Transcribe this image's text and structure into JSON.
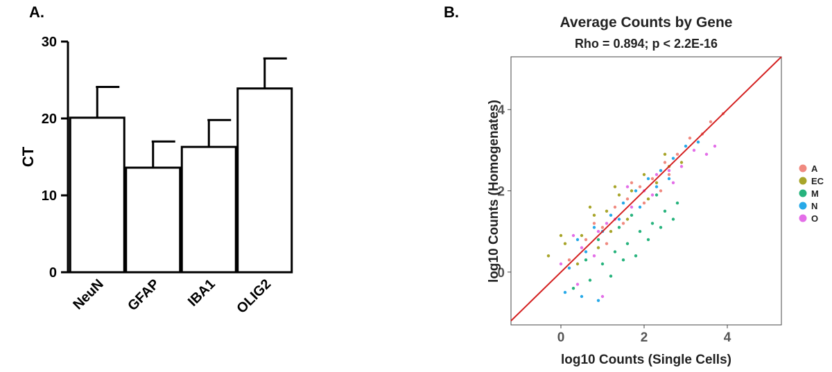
{
  "chart_data": [
    {
      "panel_label": "A.",
      "type": "bar",
      "title": "",
      "xlabel": "",
      "ylabel": "CT",
      "ylim": [
        0,
        30
      ],
      "yticks": [
        0,
        10,
        20,
        30
      ],
      "categories": [
        "NeuN",
        "GFAP",
        "IBA1",
        "OLIG2"
      ],
      "values": [
        20.1,
        13.6,
        16.3,
        23.9
      ],
      "errors": [
        4.0,
        3.4,
        3.5,
        3.9
      ],
      "grid": false,
      "colors": {
        "bar_fill": "#ffffff",
        "bar_stroke": "#000000"
      }
    },
    {
      "panel_label": "B.",
      "type": "scatter",
      "title": "Average Counts by Gene",
      "subtitle": "Rho = 0.894; p < 2.2E-16",
      "xlabel": "log10 Counts (Single Cells)",
      "ylabel": "log10 Counts (Homogenates)",
      "xlim": [
        -1.2,
        5.3
      ],
      "ylim": [
        -1.3,
        5.3
      ],
      "xticks": [
        0,
        2,
        4
      ],
      "yticks": [
        0,
        2,
        4
      ],
      "grid": false,
      "legend_position": "right",
      "fit_line": {
        "slope": 1.0,
        "intercept": 0.0,
        "color": "#d42020"
      },
      "series": [
        {
          "name": "A",
          "color": "#f08a80",
          "points": [
            [
              0.2,
              0.3
            ],
            [
              0.6,
              0.8
            ],
            [
              1.0,
              1.1
            ],
            [
              1.3,
              1.6
            ],
            [
              1.6,
              1.8
            ],
            [
              1.9,
              2.1
            ],
            [
              2.2,
              2.3
            ],
            [
              2.5,
              2.7
            ],
            [
              2.8,
              2.9
            ],
            [
              3.1,
              3.3
            ],
            [
              3.4,
              3.4
            ],
            [
              3.6,
              3.7
            ],
            [
              1.1,
              0.7
            ],
            [
              1.5,
              1.2
            ],
            [
              2.0,
              1.7
            ],
            [
              2.4,
              2.0
            ],
            [
              0.8,
              1.2
            ],
            [
              1.7,
              2.2
            ],
            [
              2.6,
              2.4
            ],
            [
              3.9,
              3.9
            ]
          ]
        },
        {
          "name": "EC",
          "color": "#a8a52a",
          "points": [
            [
              -0.3,
              0.4
            ],
            [
              0.1,
              0.7
            ],
            [
              0.5,
              0.9
            ],
            [
              0.8,
              1.4
            ],
            [
              1.1,
              1.5
            ],
            [
              1.4,
              1.9
            ],
            [
              1.7,
              2.0
            ],
            [
              2.0,
              2.4
            ],
            [
              2.3,
              2.2
            ],
            [
              2.6,
              2.6
            ],
            [
              2.9,
              2.7
            ],
            [
              0.4,
              0.2
            ],
            [
              0.9,
              0.6
            ],
            [
              1.2,
              1.0
            ],
            [
              1.6,
              1.3
            ],
            [
              2.1,
              1.8
            ],
            [
              0.0,
              0.9
            ],
            [
              0.7,
              1.6
            ],
            [
              1.3,
              2.1
            ],
            [
              2.5,
              2.9
            ]
          ]
        },
        {
          "name": "M",
          "color": "#27b37d",
          "points": [
            [
              0.3,
              -0.4
            ],
            [
              0.7,
              -0.2
            ],
            [
              1.0,
              0.2
            ],
            [
              1.3,
              0.5
            ],
            [
              1.6,
              0.7
            ],
            [
              1.9,
              1.0
            ],
            [
              2.2,
              1.2
            ],
            [
              2.5,
              1.5
            ],
            [
              2.8,
              1.7
            ],
            [
              1.2,
              -0.1
            ],
            [
              1.5,
              0.3
            ],
            [
              1.8,
              0.4
            ],
            [
              2.1,
              0.8
            ],
            [
              2.4,
              1.1
            ],
            [
              2.7,
              1.3
            ],
            [
              0.6,
              0.3
            ],
            [
              0.9,
              0.8
            ],
            [
              1.4,
              1.1
            ],
            [
              1.7,
              1.4
            ],
            [
              2.3,
              1.9
            ]
          ]
        },
        {
          "name": "N",
          "color": "#27a9e8",
          "points": [
            [
              0.4,
              0.8
            ],
            [
              0.8,
              1.1
            ],
            [
              1.2,
              1.4
            ],
            [
              1.5,
              1.7
            ],
            [
              1.8,
              2.0
            ],
            [
              2.1,
              2.3
            ],
            [
              2.4,
              2.5
            ],
            [
              2.7,
              2.8
            ],
            [
              3.0,
              3.1
            ],
            [
              3.3,
              3.2
            ],
            [
              0.2,
              0.1
            ],
            [
              0.6,
              0.5
            ],
            [
              1.0,
              1.0
            ],
            [
              1.4,
              1.3
            ],
            [
              1.9,
              1.6
            ],
            [
              2.3,
              2.1
            ],
            [
              2.6,
              2.3
            ],
            [
              0.1,
              -0.5
            ],
            [
              0.5,
              -0.6
            ],
            [
              0.9,
              -0.7
            ]
          ]
        },
        {
          "name": "O",
          "color": "#e36ee8",
          "points": [
            [
              0.0,
              0.2
            ],
            [
              0.5,
              0.6
            ],
            [
              0.9,
              1.0
            ],
            [
              1.3,
              1.3
            ],
            [
              1.7,
              1.6
            ],
            [
              2.0,
              2.0
            ],
            [
              2.3,
              2.4
            ],
            [
              2.6,
              2.5
            ],
            [
              2.9,
              2.6
            ],
            [
              3.2,
              3.0
            ],
            [
              3.5,
              2.9
            ],
            [
              0.3,
              0.9
            ],
            [
              0.8,
              0.4
            ],
            [
              1.1,
              1.2
            ],
            [
              1.6,
              2.1
            ],
            [
              2.2,
              1.9
            ],
            [
              2.7,
              2.2
            ],
            [
              0.4,
              -0.3
            ],
            [
              1.0,
              -0.6
            ],
            [
              3.7,
              3.1
            ]
          ]
        }
      ]
    }
  ]
}
